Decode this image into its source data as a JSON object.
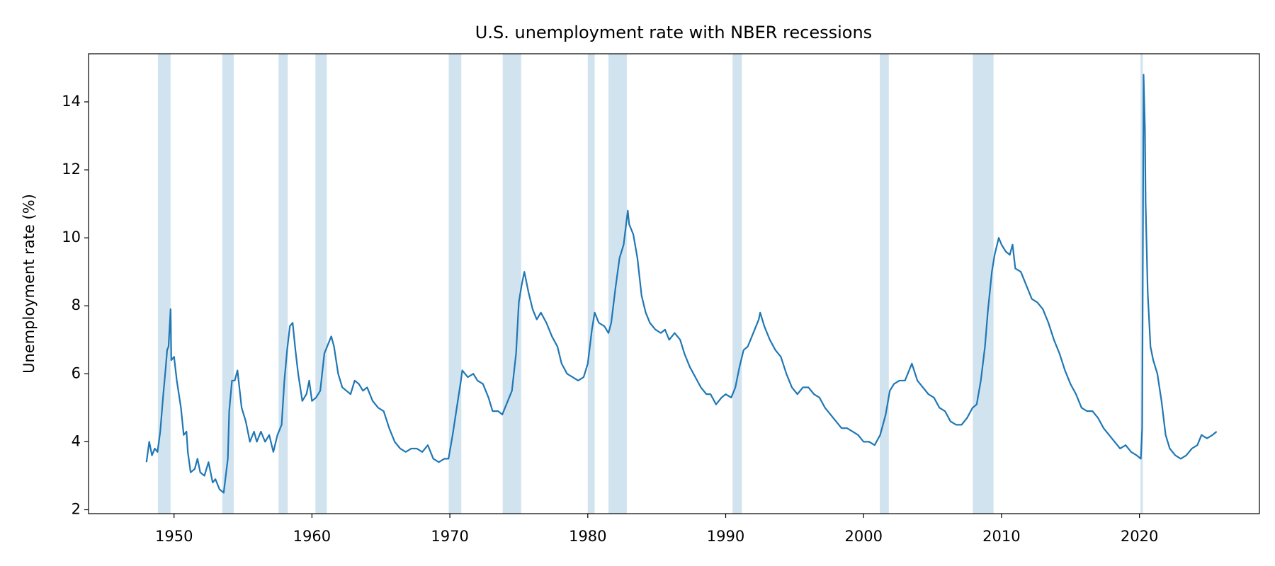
{
  "chart_data": {
    "type": "line",
    "title": "U.S. unemployment rate with NBER recessions",
    "y_label": "Unemployment rate (%)",
    "color": "#1f77b4",
    "recession_color": "#d2e3f0",
    "xlim": [
      1943.8,
      2028.7
    ],
    "ylim": [
      1.885,
      15.415
    ],
    "xticks": [
      1950,
      1960,
      1970,
      1980,
      1990,
      2000,
      2010,
      2020
    ],
    "yticks": [
      2,
      4,
      6,
      8,
      10,
      12,
      14
    ],
    "recessions": [
      [
        1948.83,
        1949.75
      ],
      [
        1953.5,
        1954.33
      ],
      [
        1957.58,
        1958.25
      ],
      [
        1960.25,
        1961.08
      ],
      [
        1969.92,
        1970.83
      ],
      [
        1973.83,
        1975.17
      ],
      [
        1980.0,
        1980.5
      ],
      [
        1981.5,
        1982.83
      ],
      [
        1990.5,
        1991.17
      ],
      [
        2001.17,
        2001.83
      ],
      [
        2007.92,
        2009.42
      ],
      [
        2020.08,
        2020.25
      ]
    ],
    "x": [
      1948.0,
      1948.2,
      1948.4,
      1948.6,
      1948.8,
      1949.0,
      1949.2,
      1949.4,
      1949.5,
      1949.6,
      1949.75,
      1949.8,
      1950.0,
      1950.2,
      1950.5,
      1950.7,
      1950.9,
      1951.0,
      1951.2,
      1951.5,
      1951.7,
      1951.9,
      1952.2,
      1952.5,
      1952.8,
      1953.0,
      1953.3,
      1953.6,
      1953.9,
      1954.0,
      1954.2,
      1954.4,
      1954.6,
      1954.9,
      1955.2,
      1955.5,
      1955.8,
      1956.0,
      1956.3,
      1956.6,
      1956.9,
      1957.2,
      1957.5,
      1957.8,
      1958.0,
      1958.2,
      1958.4,
      1958.6,
      1958.8,
      1959.0,
      1959.3,
      1959.6,
      1959.8,
      1960.0,
      1960.3,
      1960.6,
      1960.9,
      1961.2,
      1961.4,
      1961.6,
      1961.9,
      1962.2,
      1962.5,
      1962.8,
      1963.1,
      1963.4,
      1963.7,
      1964.0,
      1964.4,
      1964.8,
      1965.2,
      1965.6,
      1966.0,
      1966.4,
      1966.8,
      1967.2,
      1967.6,
      1968.0,
      1968.4,
      1968.8,
      1969.2,
      1969.6,
      1969.9,
      1970.2,
      1970.5,
      1970.8,
      1970.9,
      1971.3,
      1971.7,
      1972.0,
      1972.4,
      1972.8,
      1973.1,
      1973.5,
      1973.8,
      1974.1,
      1974.5,
      1974.8,
      1975.0,
      1975.2,
      1975.4,
      1975.7,
      1976.0,
      1976.3,
      1976.6,
      1977.0,
      1977.4,
      1977.8,
      1978.1,
      1978.5,
      1978.9,
      1979.3,
      1979.7,
      1980.0,
      1980.3,
      1980.5,
      1980.8,
      1981.2,
      1981.5,
      1981.7,
      1982.0,
      1982.3,
      1982.6,
      1982.9,
      1983.0,
      1983.3,
      1983.6,
      1983.9,
      1984.2,
      1984.5,
      1984.9,
      1985.3,
      1985.6,
      1985.9,
      1986.3,
      1986.7,
      1987.0,
      1987.4,
      1987.8,
      1988.2,
      1988.6,
      1988.9,
      1989.3,
      1989.7,
      1990.0,
      1990.4,
      1990.7,
      1991.0,
      1991.3,
      1991.6,
      1992.0,
      1992.4,
      1992.5,
      1992.8,
      1993.2,
      1993.6,
      1994.0,
      1994.4,
      1994.8,
      1995.2,
      1995.6,
      1996.0,
      1996.4,
      1996.8,
      1997.2,
      1997.6,
      1998.0,
      1998.4,
      1998.8,
      1999.2,
      1999.6,
      2000.0,
      2000.4,
      2000.8,
      2001.2,
      2001.6,
      2001.9,
      2002.2,
      2002.6,
      2003.0,
      2003.5,
      2003.9,
      2004.3,
      2004.7,
      2005.1,
      2005.5,
      2005.9,
      2006.3,
      2006.7,
      2007.1,
      2007.5,
      2007.9,
      2008.2,
      2008.5,
      2008.8,
      2009.0,
      2009.3,
      2009.5,
      2009.8,
      2010.0,
      2010.3,
      2010.6,
      2010.8,
      2011.0,
      2011.4,
      2011.8,
      2012.2,
      2012.6,
      2013.0,
      2013.4,
      2013.8,
      2014.2,
      2014.6,
      2015.0,
      2015.4,
      2015.8,
      2016.2,
      2016.6,
      2017.0,
      2017.4,
      2017.8,
      2018.2,
      2018.6,
      2019.0,
      2019.4,
      2019.8,
      2020.1,
      2020.2,
      2020.3,
      2020.4,
      2020.45,
      2020.6,
      2020.8,
      2021.0,
      2021.3,
      2021.6,
      2021.9,
      2022.2,
      2022.6,
      2023.0,
      2023.4,
      2023.8,
      2024.2,
      2024.5,
      2024.9,
      2025.3,
      2025.6
    ],
    "values": [
      3.4,
      4.0,
      3.6,
      3.8,
      3.7,
      4.3,
      5.3,
      6.2,
      6.7,
      6.8,
      7.9,
      6.4,
      6.5,
      5.8,
      5.0,
      4.2,
      4.3,
      3.7,
      3.1,
      3.2,
      3.5,
      3.1,
      3.0,
      3.4,
      2.8,
      2.9,
      2.6,
      2.5,
      3.5,
      4.9,
      5.8,
      5.8,
      6.1,
      5.0,
      4.6,
      4.0,
      4.3,
      4.0,
      4.3,
      4.0,
      4.2,
      3.7,
      4.2,
      4.5,
      5.8,
      6.7,
      7.4,
      7.5,
      6.7,
      6.0,
      5.2,
      5.4,
      5.8,
      5.2,
      5.3,
      5.5,
      6.6,
      6.9,
      7.1,
      6.8,
      6.0,
      5.6,
      5.5,
      5.4,
      5.8,
      5.7,
      5.5,
      5.6,
      5.2,
      5.0,
      4.9,
      4.4,
      4.0,
      3.8,
      3.7,
      3.8,
      3.8,
      3.7,
      3.9,
      3.5,
      3.4,
      3.5,
      3.5,
      4.2,
      5.0,
      5.8,
      6.1,
      5.9,
      6.0,
      5.8,
      5.7,
      5.3,
      4.9,
      4.9,
      4.8,
      5.1,
      5.5,
      6.6,
      8.1,
      8.6,
      9.0,
      8.4,
      7.9,
      7.6,
      7.8,
      7.5,
      7.1,
      6.8,
      6.3,
      6.0,
      5.9,
      5.8,
      5.9,
      6.3,
      7.3,
      7.8,
      7.5,
      7.4,
      7.2,
      7.5,
      8.5,
      9.4,
      9.8,
      10.8,
      10.4,
      10.1,
      9.4,
      8.3,
      7.8,
      7.5,
      7.3,
      7.2,
      7.3,
      7.0,
      7.2,
      7.0,
      6.6,
      6.2,
      5.9,
      5.6,
      5.4,
      5.4,
      5.1,
      5.3,
      5.4,
      5.3,
      5.6,
      6.2,
      6.7,
      6.8,
      7.2,
      7.6,
      7.8,
      7.4,
      7.0,
      6.7,
      6.5,
      6.0,
      5.6,
      5.4,
      5.6,
      5.6,
      5.4,
      5.3,
      5.0,
      4.8,
      4.6,
      4.4,
      4.4,
      4.3,
      4.2,
      4.0,
      4.0,
      3.9,
      4.2,
      4.8,
      5.5,
      5.7,
      5.8,
      5.8,
      6.3,
      5.8,
      5.6,
      5.4,
      5.3,
      5.0,
      4.9,
      4.6,
      4.5,
      4.5,
      4.7,
      5.0,
      5.1,
      5.8,
      6.8,
      7.8,
      9.0,
      9.5,
      10.0,
      9.8,
      9.6,
      9.5,
      9.8,
      9.1,
      9.0,
      8.6,
      8.2,
      8.1,
      7.9,
      7.5,
      7.0,
      6.6,
      6.1,
      5.7,
      5.4,
      5.0,
      4.9,
      4.9,
      4.7,
      4.4,
      4.2,
      4.0,
      3.8,
      3.9,
      3.7,
      3.6,
      3.5,
      4.4,
      14.8,
      13.2,
      11.0,
      8.4,
      6.8,
      6.4,
      6.0,
      5.2,
      4.2,
      3.8,
      3.6,
      3.5,
      3.6,
      3.8,
      3.9,
      4.2,
      4.1,
      4.2,
      4.3
    ]
  }
}
